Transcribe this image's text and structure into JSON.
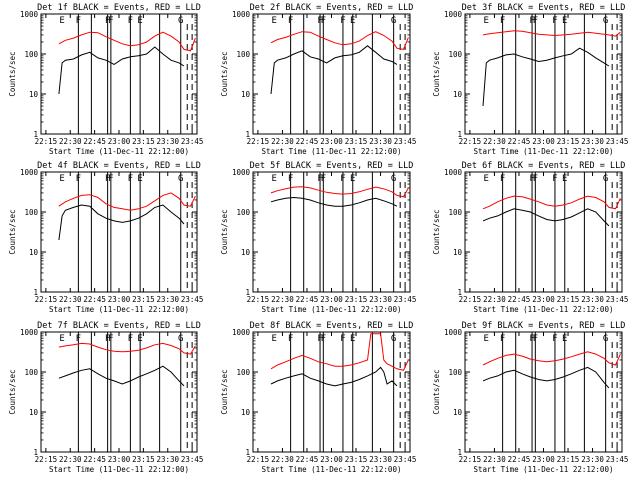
{
  "page": {
    "background": "#ffffff"
  },
  "colors": {
    "events": "#000000",
    "lld": "#ff0000",
    "axes": "#000000",
    "segments": "#000000"
  },
  "common": {
    "xlabel": "Start Time (11-Dec-11 22:12:00)",
    "ylabel": "Counts/sec",
    "x_tick_labels": [
      "22:15",
      "22:30",
      "22:45",
      "23:00",
      "23:15",
      "23:30",
      "23:45"
    ],
    "y_tick_labels": [
      "1",
      "10",
      "100",
      "1000"
    ],
    "segment_labels": [
      "E",
      "F",
      "F",
      "F",
      "F",
      "E",
      "G"
    ]
  },
  "chart_data": [
    {
      "type": "line",
      "title": "Det 1f BLACK = Events, RED = LLD",
      "xlabel": "Start Time (11-Dec-11 22:12:00)",
      "ylabel": "Counts/sec",
      "y_scale": "log",
      "ylim": [
        1,
        1000
      ],
      "x_unit": "minutes from 22:12",
      "xlim": [
        0,
        96
      ],
      "series": [
        {
          "name": "Events",
          "color": "#000000",
          "x": [
            11,
            13,
            15,
            20,
            25,
            30,
            35,
            40,
            45,
            50,
            55,
            60,
            65,
            70,
            75,
            80,
            85,
            88
          ],
          "y": [
            10,
            60,
            70,
            75,
            95,
            110,
            80,
            70,
            55,
            75,
            85,
            90,
            100,
            150,
            100,
            70,
            60,
            50
          ]
        },
        {
          "name": "LLD",
          "color": "#ff0000",
          "x": [
            11,
            15,
            20,
            25,
            30,
            35,
            40,
            45,
            50,
            55,
            60,
            65,
            70,
            75,
            80,
            85,
            88,
            92,
            95
          ],
          "y": [
            180,
            220,
            250,
            300,
            350,
            340,
            270,
            220,
            180,
            160,
            170,
            200,
            280,
            350,
            280,
            200,
            130,
            120,
            250
          ]
        }
      ],
      "segment_lines_x": [
        23,
        31,
        41,
        43,
        55,
        61,
        73,
        86
      ],
      "dashed_x": [
        90,
        93
      ]
    },
    {
      "type": "line",
      "title": "Det 2f BLACK = Events, RED = LLD",
      "xlabel": "Start Time (11-Dec-11 22:12:00)",
      "ylabel": "Counts/sec",
      "y_scale": "log",
      "ylim": [
        1,
        1000
      ],
      "x_unit": "minutes from 22:12",
      "xlim": [
        0,
        96
      ],
      "series": [
        {
          "name": "Events",
          "color": "#000000",
          "x": [
            11,
            13,
            15,
            20,
            25,
            30,
            35,
            40,
            45,
            50,
            55,
            60,
            65,
            70,
            75,
            80,
            85,
            88
          ],
          "y": [
            10,
            60,
            70,
            80,
            100,
            120,
            85,
            75,
            60,
            80,
            90,
            95,
            110,
            160,
            110,
            75,
            65,
            55
          ]
        },
        {
          "name": "LLD",
          "color": "#ff0000",
          "x": [
            11,
            15,
            20,
            25,
            30,
            35,
            40,
            45,
            50,
            55,
            60,
            65,
            70,
            75,
            80,
            85,
            88,
            92,
            95
          ],
          "y": [
            190,
            230,
            260,
            310,
            360,
            350,
            280,
            230,
            190,
            170,
            180,
            210,
            290,
            360,
            290,
            210,
            140,
            130,
            260
          ]
        }
      ],
      "segment_lines_x": [
        23,
        31,
        41,
        43,
        55,
        61,
        73,
        86
      ],
      "dashed_x": [
        90,
        93
      ]
    },
    {
      "type": "line",
      "title": "Det 3f BLACK = Events, RED = LLD",
      "xlabel": "Start Time (11-Dec-11 22:12:00)",
      "ylabel": "Counts/sec",
      "y_scale": "log",
      "ylim": [
        1,
        1000
      ],
      "x_unit": "minutes from 22:12",
      "xlim": [
        0,
        96
      ],
      "series": [
        {
          "name": "Events",
          "color": "#000000",
          "x": [
            11,
            13,
            15,
            20,
            25,
            30,
            35,
            40,
            45,
            50,
            55,
            60,
            65,
            70,
            75,
            80,
            85,
            88
          ],
          "y": [
            5,
            60,
            70,
            80,
            95,
            100,
            85,
            75,
            65,
            70,
            80,
            90,
            100,
            140,
            110,
            80,
            60,
            50
          ]
        },
        {
          "name": "LLD",
          "color": "#ff0000",
          "x": [
            11,
            15,
            20,
            25,
            30,
            35,
            40,
            45,
            50,
            55,
            60,
            65,
            70,
            75,
            80,
            85,
            88,
            92,
            95
          ],
          "y": [
            300,
            320,
            340,
            360,
            380,
            370,
            340,
            310,
            300,
            290,
            300,
            310,
            330,
            350,
            330,
            310,
            300,
            280,
            350
          ]
        }
      ],
      "segment_lines_x": [
        23,
        31,
        41,
        43,
        55,
        61,
        73,
        86
      ],
      "dashed_x": [
        90,
        93
      ]
    },
    {
      "type": "line",
      "title": "Det 4f BLACK = Events, RED = LLD",
      "xlabel": "Start Time (11-Dec-11 22:12:00)",
      "ylabel": "Counts/sec",
      "y_scale": "log",
      "ylim": [
        1,
        1000
      ],
      "x_unit": "minutes from 22:12",
      "xlim": [
        0,
        96
      ],
      "series": [
        {
          "name": "Events",
          "color": "#000000",
          "x": [
            11,
            13,
            15,
            20,
            25,
            30,
            35,
            40,
            45,
            50,
            55,
            60,
            65,
            70,
            75,
            80,
            85,
            88
          ],
          "y": [
            20,
            80,
            110,
            130,
            150,
            140,
            90,
            70,
            60,
            55,
            60,
            70,
            90,
            130,
            150,
            100,
            70,
            50
          ]
        },
        {
          "name": "LLD",
          "color": "#ff0000",
          "x": [
            11,
            15,
            20,
            25,
            30,
            35,
            40,
            45,
            50,
            55,
            60,
            65,
            70,
            75,
            80,
            85,
            88,
            92,
            95
          ],
          "y": [
            140,
            180,
            220,
            260,
            270,
            230,
            160,
            130,
            120,
            110,
            120,
            140,
            190,
            260,
            300,
            220,
            150,
            140,
            250
          ]
        }
      ],
      "segment_lines_x": [
        23,
        31,
        41,
        43,
        55,
        61,
        73,
        86
      ],
      "dashed_x": [
        90,
        93
      ]
    },
    {
      "type": "line",
      "title": "Det 5f BLACK = Events, RED = LLD",
      "xlabel": "Start Time (11-Dec-11 22:12:00)",
      "ylabel": "Counts/sec",
      "y_scale": "log",
      "ylim": [
        1,
        1000
      ],
      "x_unit": "minutes from 22:12",
      "xlim": [
        0,
        96
      ],
      "series": [
        {
          "name": "Events",
          "color": "#000000",
          "x": [
            11,
            15,
            20,
            25,
            30,
            35,
            40,
            45,
            50,
            55,
            60,
            65,
            70,
            75,
            80,
            85,
            88
          ],
          "y": [
            180,
            200,
            220,
            230,
            220,
            200,
            170,
            150,
            140,
            140,
            150,
            170,
            200,
            220,
            190,
            160,
            140
          ]
        },
        {
          "name": "LLD",
          "color": "#ff0000",
          "x": [
            11,
            15,
            20,
            25,
            30,
            35,
            40,
            45,
            50,
            55,
            60,
            65,
            70,
            75,
            80,
            85,
            88,
            92,
            95
          ],
          "y": [
            300,
            340,
            380,
            420,
            430,
            400,
            350,
            310,
            290,
            280,
            290,
            320,
            370,
            420,
            380,
            320,
            260,
            240,
            400
          ]
        }
      ],
      "segment_lines_x": [
        23,
        31,
        41,
        43,
        55,
        61,
        73,
        86
      ],
      "dashed_x": [
        90,
        93
      ]
    },
    {
      "type": "line",
      "title": "Det 6f BLACK = Events, RED = LLD",
      "xlabel": "Start Time (11-Dec-11 22:12:00)",
      "ylabel": "Counts/sec",
      "y_scale": "log",
      "ylim": [
        1,
        1000
      ],
      "x_unit": "minutes from 22:12",
      "xlim": [
        0,
        96
      ],
      "series": [
        {
          "name": "Events",
          "color": "#000000",
          "x": [
            11,
            15,
            20,
            25,
            30,
            35,
            40,
            45,
            50,
            55,
            60,
            65,
            70,
            75,
            80,
            85,
            88
          ],
          "y": [
            60,
            70,
            80,
            100,
            120,
            110,
            100,
            80,
            65,
            60,
            65,
            75,
            95,
            120,
            100,
            60,
            45
          ]
        },
        {
          "name": "LLD",
          "color": "#ff0000",
          "x": [
            11,
            15,
            20,
            25,
            30,
            35,
            40,
            45,
            50,
            55,
            60,
            65,
            70,
            75,
            80,
            85,
            88,
            92,
            95
          ],
          "y": [
            120,
            140,
            180,
            220,
            250,
            240,
            210,
            180,
            150,
            140,
            150,
            170,
            210,
            250,
            230,
            180,
            130,
            120,
            220
          ]
        }
      ],
      "segment_lines_x": [
        23,
        31,
        41,
        43,
        55,
        61,
        73,
        86
      ],
      "dashed_x": [
        90,
        93
      ]
    },
    {
      "type": "line",
      "title": "Det 7f BLACK = Events, RED = LLD",
      "xlabel": "Start Time (11-Dec-11 22:12:00)",
      "ylabel": "Counts/sec",
      "y_scale": "log",
      "ylim": [
        1,
        1000
      ],
      "x_unit": "minutes from 22:12",
      "xlim": [
        0,
        96
      ],
      "series": [
        {
          "name": "Events",
          "color": "#000000",
          "x": [
            11,
            15,
            20,
            25,
            30,
            35,
            40,
            45,
            50,
            55,
            60,
            65,
            70,
            75,
            80,
            85,
            88
          ],
          "y": [
            70,
            80,
            95,
            110,
            120,
            90,
            70,
            60,
            50,
            60,
            75,
            90,
            110,
            140,
            100,
            60,
            45
          ]
        },
        {
          "name": "LLD",
          "color": "#ff0000",
          "x": [
            11,
            15,
            20,
            25,
            30,
            35,
            40,
            45,
            50,
            55,
            60,
            65,
            70,
            75,
            80,
            85,
            88,
            92,
            95
          ],
          "y": [
            420,
            450,
            480,
            520,
            500,
            420,
            360,
            330,
            320,
            330,
            350,
            400,
            480,
            520,
            460,
            380,
            300,
            280,
            450
          ]
        }
      ],
      "segment_lines_x": [
        23,
        31,
        41,
        43,
        55,
        61,
        73,
        86
      ],
      "dashed_x": [
        90,
        93
      ]
    },
    {
      "type": "line",
      "title": "Det 8f BLACK = Events, RED = LLD",
      "xlabel": "Start Time (11-Dec-11 22:12:00)",
      "ylabel": "Counts/sec",
      "y_scale": "log",
      "ylim": [
        1,
        1000
      ],
      "x_unit": "minutes from 22:12",
      "xlim": [
        0,
        96
      ],
      "series": [
        {
          "name": "Events",
          "color": "#000000",
          "x": [
            11,
            15,
            20,
            25,
            30,
            35,
            40,
            45,
            50,
            55,
            60,
            65,
            70,
            75,
            78,
            80,
            82,
            85,
            88
          ],
          "y": [
            50,
            60,
            70,
            80,
            90,
            70,
            60,
            50,
            45,
            50,
            55,
            65,
            80,
            100,
            130,
            100,
            50,
            60,
            45
          ]
        },
        {
          "name": "LLD",
          "color": "#ff0000",
          "x": [
            11,
            15,
            20,
            25,
            30,
            35,
            40,
            45,
            50,
            55,
            60,
            65,
            70,
            72,
            75,
            78,
            80,
            82,
            85,
            88,
            92,
            95
          ],
          "y": [
            120,
            150,
            180,
            220,
            260,
            220,
            180,
            160,
            140,
            140,
            150,
            170,
            200,
            900,
            900,
            900,
            200,
            160,
            140,
            120,
            110,
            200
          ]
        }
      ],
      "segment_lines_x": [
        23,
        31,
        41,
        43,
        55,
        61,
        73,
        86
      ],
      "dashed_x": [
        90,
        93
      ]
    },
    {
      "type": "line",
      "title": "Det 9f BLACK = Events, RED = LLD",
      "xlabel": "Start Time (11-Dec-11 22:12:00)",
      "ylabel": "Counts/sec",
      "y_scale": "log",
      "ylim": [
        1,
        1000
      ],
      "x_unit": "minutes from 22:12",
      "xlim": [
        0,
        96
      ],
      "series": [
        {
          "name": "Events",
          "color": "#000000",
          "x": [
            11,
            15,
            20,
            25,
            30,
            35,
            40,
            45,
            50,
            55,
            60,
            65,
            70,
            75,
            80,
            85,
            88
          ],
          "y": [
            60,
            70,
            80,
            100,
            110,
            90,
            75,
            65,
            60,
            65,
            75,
            90,
            110,
            130,
            100,
            55,
            40
          ]
        },
        {
          "name": "LLD",
          "color": "#ff0000",
          "x": [
            11,
            15,
            20,
            25,
            30,
            35,
            40,
            45,
            50,
            55,
            60,
            65,
            70,
            75,
            80,
            85,
            88,
            92,
            95
          ],
          "y": [
            150,
            180,
            220,
            260,
            280,
            250,
            210,
            190,
            180,
            190,
            210,
            240,
            280,
            320,
            280,
            220,
            170,
            150,
            280
          ]
        }
      ],
      "segment_lines_x": [
        23,
        31,
        41,
        43,
        55,
        61,
        73,
        86
      ],
      "dashed_x": [
        90,
        93
      ]
    }
  ]
}
